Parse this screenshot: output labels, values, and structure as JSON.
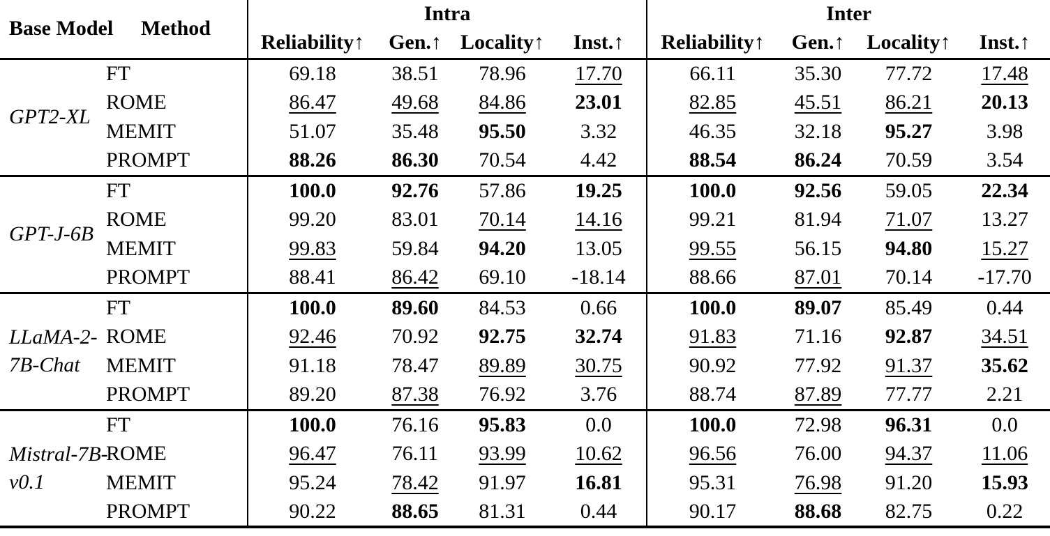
{
  "table": {
    "headers": {
      "base_model": "Base Model",
      "method": "Method",
      "groups": [
        "Intra",
        "Inter"
      ],
      "metrics": [
        "Reliability↑",
        "Gen.↑",
        "Locality↑",
        "Inst.↑"
      ]
    },
    "blocks": [
      {
        "model": [
          "GPT2-XL"
        ],
        "rows": [
          {
            "method": "FT",
            "intra": [
              {
                "v": "69.18",
                "s": ""
              },
              {
                "v": "38.51",
                "s": ""
              },
              {
                "v": "78.96",
                "s": ""
              },
              {
                "v": "17.70",
                "s": "u"
              }
            ],
            "inter": [
              {
                "v": "66.11",
                "s": ""
              },
              {
                "v": "35.30",
                "s": ""
              },
              {
                "v": "77.72",
                "s": ""
              },
              {
                "v": "17.48",
                "s": "u"
              }
            ]
          },
          {
            "method": "ROME",
            "intra": [
              {
                "v": "86.47",
                "s": "u"
              },
              {
                "v": "49.68",
                "s": "u"
              },
              {
                "v": "84.86",
                "s": "u"
              },
              {
                "v": "23.01",
                "s": "b"
              }
            ],
            "inter": [
              {
                "v": "82.85",
                "s": "u"
              },
              {
                "v": "45.51",
                "s": "u"
              },
              {
                "v": "86.21",
                "s": "u"
              },
              {
                "v": "20.13",
                "s": "b"
              }
            ]
          },
          {
            "method": "MEMIT",
            "intra": [
              {
                "v": "51.07",
                "s": ""
              },
              {
                "v": "35.48",
                "s": ""
              },
              {
                "v": "95.50",
                "s": "b"
              },
              {
                "v": "3.32",
                "s": ""
              }
            ],
            "inter": [
              {
                "v": "46.35",
                "s": ""
              },
              {
                "v": "32.18",
                "s": ""
              },
              {
                "v": "95.27",
                "s": "b"
              },
              {
                "v": "3.98",
                "s": ""
              }
            ]
          },
          {
            "method": "PROMPT",
            "intra": [
              {
                "v": "88.26",
                "s": "b"
              },
              {
                "v": "86.30",
                "s": "b"
              },
              {
                "v": "70.54",
                "s": ""
              },
              {
                "v": "4.42",
                "s": ""
              }
            ],
            "inter": [
              {
                "v": "88.54",
                "s": "b"
              },
              {
                "v": "86.24",
                "s": "b"
              },
              {
                "v": "70.59",
                "s": ""
              },
              {
                "v": "3.54",
                "s": ""
              }
            ]
          }
        ]
      },
      {
        "model": [
          "GPT-J-6B"
        ],
        "rows": [
          {
            "method": "FT",
            "intra": [
              {
                "v": "100.0",
                "s": "b"
              },
              {
                "v": "92.76",
                "s": "b"
              },
              {
                "v": "57.86",
                "s": ""
              },
              {
                "v": "19.25",
                "s": "b"
              }
            ],
            "inter": [
              {
                "v": "100.0",
                "s": "b"
              },
              {
                "v": "92.56",
                "s": "b"
              },
              {
                "v": "59.05",
                "s": ""
              },
              {
                "v": "22.34",
                "s": "b"
              }
            ]
          },
          {
            "method": "ROME",
            "intra": [
              {
                "v": "99.20",
                "s": ""
              },
              {
                "v": "83.01",
                "s": ""
              },
              {
                "v": "70.14",
                "s": "u"
              },
              {
                "v": "14.16",
                "s": "u"
              }
            ],
            "inter": [
              {
                "v": "99.21",
                "s": ""
              },
              {
                "v": "81.94",
                "s": ""
              },
              {
                "v": "71.07",
                "s": "u"
              },
              {
                "v": "13.27",
                "s": ""
              }
            ]
          },
          {
            "method": "MEMIT",
            "intra": [
              {
                "v": "99.83",
                "s": "u"
              },
              {
                "v": "59.84",
                "s": ""
              },
              {
                "v": "94.20",
                "s": "b"
              },
              {
                "v": "13.05",
                "s": ""
              }
            ],
            "inter": [
              {
                "v": "99.55",
                "s": "u"
              },
              {
                "v": "56.15",
                "s": ""
              },
              {
                "v": "94.80",
                "s": "b"
              },
              {
                "v": "15.27",
                "s": "u"
              }
            ]
          },
          {
            "method": "PROMPT",
            "intra": [
              {
                "v": "88.41",
                "s": ""
              },
              {
                "v": "86.42",
                "s": "u"
              },
              {
                "v": "69.10",
                "s": ""
              },
              {
                "v": "-18.14",
                "s": ""
              }
            ],
            "inter": [
              {
                "v": "88.66",
                "s": ""
              },
              {
                "v": "87.01",
                "s": "u"
              },
              {
                "v": "70.14",
                "s": ""
              },
              {
                "v": "-17.70",
                "s": ""
              }
            ]
          }
        ]
      },
      {
        "model": [
          "LLaMA-2-",
          "7B-Chat"
        ],
        "rows": [
          {
            "method": "FT",
            "intra": [
              {
                "v": "100.0",
                "s": "b"
              },
              {
                "v": "89.60",
                "s": "b"
              },
              {
                "v": "84.53",
                "s": ""
              },
              {
                "v": "0.66",
                "s": ""
              }
            ],
            "inter": [
              {
                "v": "100.0",
                "s": "b"
              },
              {
                "v": "89.07",
                "s": "b"
              },
              {
                "v": "85.49",
                "s": ""
              },
              {
                "v": "0.44",
                "s": ""
              }
            ]
          },
          {
            "method": "ROME",
            "intra": [
              {
                "v": "92.46",
                "s": "u"
              },
              {
                "v": "70.92",
                "s": ""
              },
              {
                "v": "92.75",
                "s": "b"
              },
              {
                "v": "32.74",
                "s": "b"
              }
            ],
            "inter": [
              {
                "v": "91.83",
                "s": "u"
              },
              {
                "v": "71.16",
                "s": ""
              },
              {
                "v": "92.87",
                "s": "b"
              },
              {
                "v": "34.51",
                "s": "u"
              }
            ]
          },
          {
            "method": "MEMIT",
            "intra": [
              {
                "v": "91.18",
                "s": ""
              },
              {
                "v": "78.47",
                "s": ""
              },
              {
                "v": "89.89",
                "s": "u"
              },
              {
                "v": "30.75",
                "s": "u"
              }
            ],
            "inter": [
              {
                "v": "90.92",
                "s": ""
              },
              {
                "v": "77.92",
                "s": ""
              },
              {
                "v": "91.37",
                "s": "u"
              },
              {
                "v": "35.62",
                "s": "b"
              }
            ]
          },
          {
            "method": "PROMPT",
            "intra": [
              {
                "v": "89.20",
                "s": ""
              },
              {
                "v": "87.38",
                "s": "u"
              },
              {
                "v": "76.92",
                "s": ""
              },
              {
                "v": "3.76",
                "s": ""
              }
            ],
            "inter": [
              {
                "v": "88.74",
                "s": ""
              },
              {
                "v": "87.89",
                "s": "u"
              },
              {
                "v": "77.77",
                "s": ""
              },
              {
                "v": "2.21",
                "s": ""
              }
            ]
          }
        ]
      },
      {
        "model": [
          "Mistral-7B-",
          "v0.1"
        ],
        "rows": [
          {
            "method": "FT",
            "intra": [
              {
                "v": "100.0",
                "s": "b"
              },
              {
                "v": "76.16",
                "s": ""
              },
              {
                "v": "95.83",
                "s": "b"
              },
              {
                "v": "0.0",
                "s": ""
              }
            ],
            "inter": [
              {
                "v": "100.0",
                "s": "b"
              },
              {
                "v": "72.98",
                "s": ""
              },
              {
                "v": "96.31",
                "s": "b"
              },
              {
                "v": "0.0",
                "s": ""
              }
            ]
          },
          {
            "method": "ROME",
            "intra": [
              {
                "v": "96.47",
                "s": "u"
              },
              {
                "v": "76.11",
                "s": ""
              },
              {
                "v": "93.99",
                "s": "u"
              },
              {
                "v": "10.62",
                "s": "u"
              }
            ],
            "inter": [
              {
                "v": "96.56",
                "s": "u"
              },
              {
                "v": "76.00",
                "s": ""
              },
              {
                "v": "94.37",
                "s": "u"
              },
              {
                "v": "11.06",
                "s": "u"
              }
            ]
          },
          {
            "method": "MEMIT",
            "intra": [
              {
                "v": "95.24",
                "s": ""
              },
              {
                "v": "78.42",
                "s": "u"
              },
              {
                "v": "91.97",
                "s": ""
              },
              {
                "v": "16.81",
                "s": "b"
              }
            ],
            "inter": [
              {
                "v": "95.31",
                "s": ""
              },
              {
                "v": "76.98",
                "s": "u"
              },
              {
                "v": "91.20",
                "s": ""
              },
              {
                "v": "15.93",
                "s": "b"
              }
            ]
          },
          {
            "method": "PROMPT",
            "intra": [
              {
                "v": "90.22",
                "s": ""
              },
              {
                "v": "88.65",
                "s": "b"
              },
              {
                "v": "81.31",
                "s": ""
              },
              {
                "v": "0.44",
                "s": ""
              }
            ],
            "inter": [
              {
                "v": "90.17",
                "s": ""
              },
              {
                "v": "88.68",
                "s": "b"
              },
              {
                "v": "82.75",
                "s": ""
              },
              {
                "v": "0.22",
                "s": ""
              }
            ]
          }
        ]
      }
    ]
  }
}
